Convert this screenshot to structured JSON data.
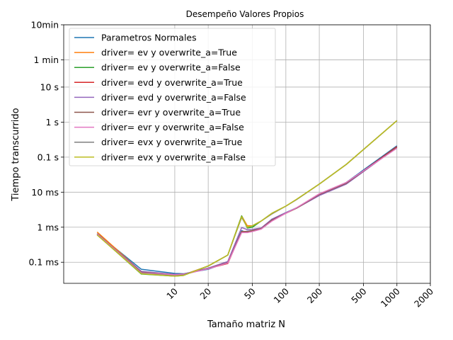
{
  "chart_data": {
    "type": "line",
    "title": "Desempeño Valores Propios",
    "xlabel": "Tamaño matriz N",
    "ylabel": "Tiempo transcurrido",
    "x_scale": "log",
    "y_scale": "log",
    "xlim": [
      1,
      2000
    ],
    "ylim": [
      2.5e-05,
      600
    ],
    "grid": true,
    "legend_position": "upper-left",
    "x_ticks": [
      {
        "value": 10,
        "label": "10"
      },
      {
        "value": 20,
        "label": "20"
      },
      {
        "value": 50,
        "label": "50"
      },
      {
        "value": 100,
        "label": "100"
      },
      {
        "value": 200,
        "label": "200"
      },
      {
        "value": 500,
        "label": "500"
      },
      {
        "value": 1000,
        "label": "1000"
      },
      {
        "value": 2000,
        "label": "2000"
      }
    ],
    "y_ticks": [
      {
        "value": 0.0001,
        "label": "0.1 ms"
      },
      {
        "value": 0.001,
        "label": "1 ms"
      },
      {
        "value": 0.01,
        "label": "10 ms"
      },
      {
        "value": 0.1,
        "label": "0.1 s"
      },
      {
        "value": 1,
        "label": "1 s"
      },
      {
        "value": 10,
        "label": "10 s"
      },
      {
        "value": 60,
        "label": "1 min"
      },
      {
        "value": 600,
        "label": "10min"
      }
    ],
    "series": [
      {
        "name": "Parametros Normales",
        "color": "#1f77b4",
        "x": [
          2,
          5,
          10,
          12,
          20,
          30,
          40,
          42,
          50,
          60,
          75,
          100,
          125,
          200,
          350,
          1000
        ],
        "y": [
          0.00066,
          6.3e-05,
          4.8e-05,
          4.7e-05,
          6.3e-05,
          0.0001,
          0.0008,
          0.00075,
          0.0008,
          0.00092,
          0.0017,
          0.0026,
          0.0036,
          0.0082,
          0.019,
          0.21
        ]
      },
      {
        "name": "driver= ev y overwrite_a=True",
        "color": "#ff7f0e",
        "x": [
          2,
          5,
          10,
          12,
          20,
          30,
          40,
          45,
          50,
          60,
          75,
          100,
          125,
          200,
          350,
          1000
        ],
        "y": [
          0.00073,
          5.4e-05,
          4.3e-05,
          4.4e-05,
          7.8e-05,
          0.00016,
          0.0021,
          0.0011,
          0.0011,
          0.0015,
          0.0025,
          0.004,
          0.0062,
          0.017,
          0.062,
          1.1
        ]
      },
      {
        "name": "driver= ev y overwrite_a=False",
        "color": "#2ca02c",
        "x": [
          2,
          5,
          10,
          12,
          20,
          30,
          40,
          45,
          50,
          60,
          75,
          100,
          125,
          200,
          350,
          1000
        ],
        "y": [
          0.00061,
          4.6e-05,
          4e-05,
          4.2e-05,
          7.8e-05,
          0.00016,
          0.0021,
          0.00095,
          0.001,
          0.0015,
          0.0025,
          0.004,
          0.0062,
          0.017,
          0.062,
          1.1
        ]
      },
      {
        "name": "driver= evd y overwrite_a=True",
        "color": "#d62728",
        "x": [
          2,
          5,
          10,
          12,
          20,
          30,
          40,
          45,
          50,
          60,
          75,
          100,
          125,
          200,
          350,
          1000
        ],
        "y": [
          0.00065,
          5e-05,
          4.5e-05,
          4.6e-05,
          6.6e-05,
          9.2e-05,
          0.00075,
          0.00075,
          0.0008,
          0.0009,
          0.0016,
          0.0025,
          0.0035,
          0.0085,
          0.018,
          0.2
        ]
      },
      {
        "name": "driver= evd y overwrite_a=False",
        "color": "#9467bd",
        "x": [
          2,
          5,
          10,
          12,
          20,
          30,
          40,
          45,
          50,
          60,
          75,
          100,
          125,
          200,
          350,
          1000
        ],
        "y": [
          0.00063,
          5.5e-05,
          4.5e-05,
          4.6e-05,
          6.8e-05,
          0.000105,
          0.00098,
          0.00085,
          0.00087,
          0.00095,
          0.0017,
          0.0026,
          0.0035,
          0.008,
          0.017,
          0.19
        ]
      },
      {
        "name": "driver= evr y overwrite_a=True",
        "color": "#8c564b",
        "x": [
          2,
          5,
          10,
          12,
          20,
          30,
          40,
          45,
          50,
          60,
          75,
          100,
          125,
          200,
          350,
          1000
        ],
        "y": [
          0.00064,
          5.2e-05,
          4.4e-05,
          4.5e-05,
          6.6e-05,
          9.8e-05,
          0.00076,
          0.00075,
          0.0008,
          0.00091,
          0.0016,
          0.0025,
          0.0035,
          0.0086,
          0.018,
          0.19
        ]
      },
      {
        "name": "driver= evr y overwrite_a=False",
        "color": "#e377c2",
        "x": [
          2,
          5,
          10,
          12,
          20,
          30,
          40,
          45,
          50,
          60,
          75,
          100,
          125,
          200,
          350,
          1000
        ],
        "y": [
          0.00064,
          5e-05,
          4.4e-05,
          4.5e-05,
          6.5e-05,
          9.5e-05,
          0.0007,
          0.0007,
          0.00075,
          0.00088,
          0.0015,
          0.0025,
          0.0036,
          0.009,
          0.019,
          0.18
        ]
      },
      {
        "name": "driver= evx y overwrite_a=True",
        "color": "#7f7f7f",
        "x": [
          2,
          5,
          10,
          12,
          20,
          30,
          40,
          45,
          50,
          60,
          75,
          100,
          125,
          200,
          350,
          1000
        ],
        "y": [
          0.0006,
          4.8e-05,
          4.1e-05,
          4.3e-05,
          7.8e-05,
          0.00016,
          0.0019,
          0.001,
          0.0011,
          0.0015,
          0.0024,
          0.004,
          0.0062,
          0.017,
          0.062,
          1.1
        ]
      },
      {
        "name": "driver= evx y overwrite_a=False",
        "color": "#bcbd22",
        "x": [
          2,
          5,
          10,
          12,
          20,
          30,
          40,
          45,
          50,
          60,
          75,
          100,
          125,
          200,
          350,
          1000
        ],
        "y": [
          0.0006,
          4.7e-05,
          4e-05,
          4.2e-05,
          7.9e-05,
          0.00016,
          0.002,
          0.001,
          0.0011,
          0.0015,
          0.0025,
          0.004,
          0.0063,
          0.017,
          0.062,
          1.1
        ]
      }
    ]
  }
}
